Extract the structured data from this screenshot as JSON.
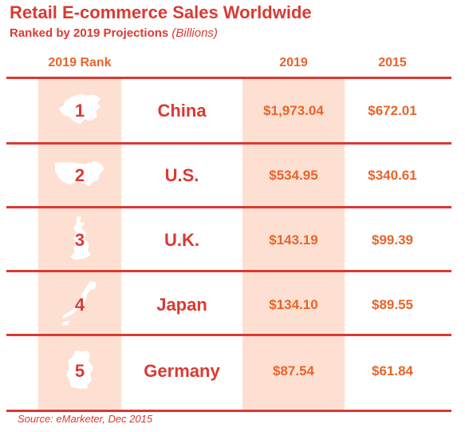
{
  "title": "Retail E-commerce Sales Worldwide",
  "subtitle": "Ranked by 2019 Projections",
  "subtitle_unit": "(Billions)",
  "source": "Source: eMarketer, Dec 2015",
  "colors": {
    "title_red": "#d93a33",
    "accent_orange": "#e8642b",
    "stripe": "#fde0d2",
    "rule": "#d93a33"
  },
  "chart_data": {
    "type": "table",
    "title": "Retail E-commerce Sales Worldwide",
    "subtitle": "Ranked by 2019 Projections (Billions)",
    "columns": [
      "2019 Rank",
      "",
      "2019",
      "2015"
    ],
    "rows": [
      {
        "rank": "1",
        "country": "China",
        "v2019": "$1,973.04",
        "v2015": "$672.01",
        "icon": "china-map-icon"
      },
      {
        "rank": "2",
        "country": "U.S.",
        "v2019": "$534.95",
        "v2015": "$340.61",
        "icon": "usa-map-icon"
      },
      {
        "rank": "3",
        "country": "U.K.",
        "v2019": "$143.19",
        "v2015": "$99.39",
        "icon": "uk-map-icon"
      },
      {
        "rank": "4",
        "country": "Japan",
        "v2019": "$134.10",
        "v2015": "$89.55",
        "icon": "japan-map-icon"
      },
      {
        "rank": "5",
        "country": "Germany",
        "v2019": "$87.54",
        "v2015": "$61.84",
        "icon": "germany-map-icon"
      }
    ],
    "series": [
      {
        "name": "2019",
        "values": [
          1973.04,
          534.95,
          143.19,
          134.1,
          87.54
        ]
      },
      {
        "name": "2015",
        "values": [
          672.01,
          340.61,
          99.39,
          89.55,
          61.84
        ]
      }
    ],
    "categories": [
      "China",
      "U.S.",
      "U.K.",
      "Japan",
      "Germany"
    ]
  }
}
